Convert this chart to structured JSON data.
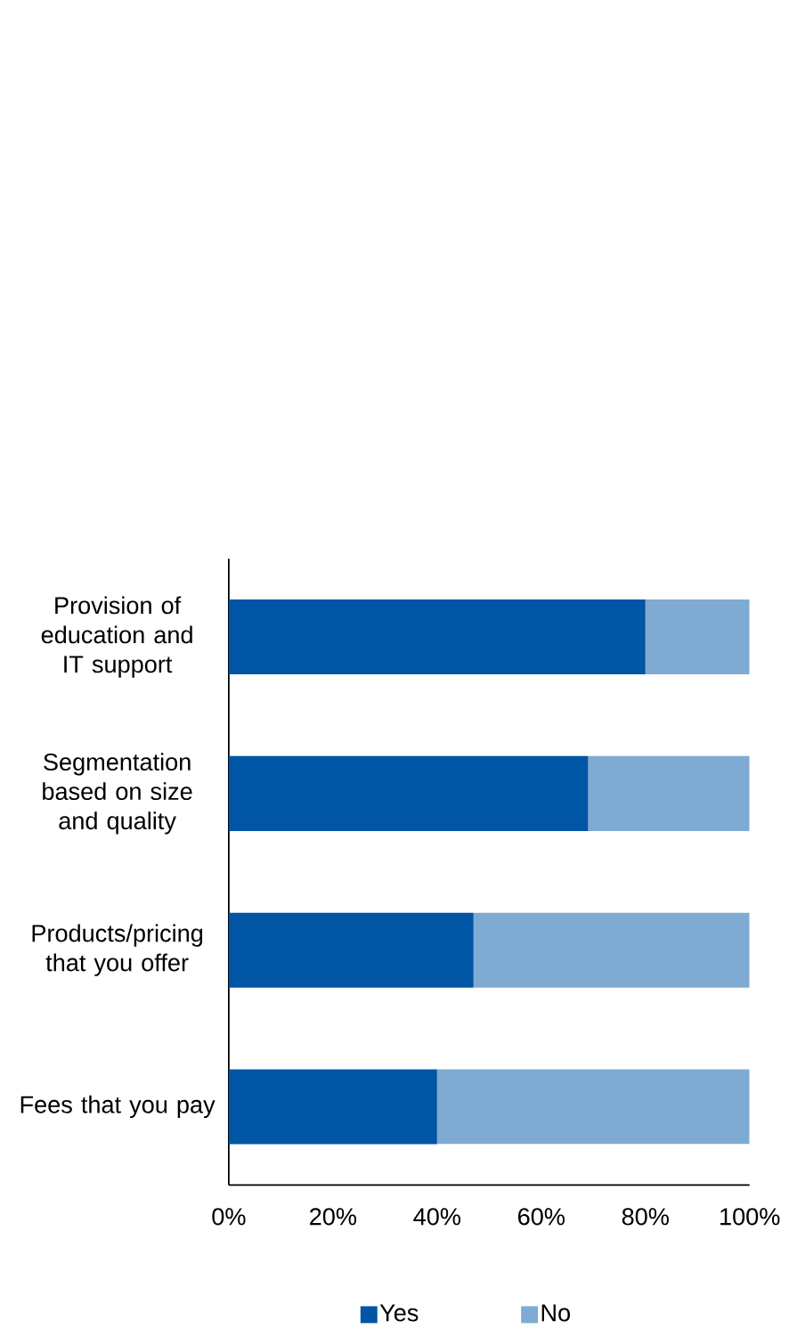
{
  "chart_data": {
    "type": "bar",
    "orientation": "horizontal",
    "stacked": true,
    "categories": [
      "Provision of education and IT support",
      "Segmentation based on size and quality",
      "Products/pricing that you offer",
      "Fees that you pay"
    ],
    "series": [
      {
        "name": "Yes",
        "color": "#0055a5",
        "values": [
          80,
          69,
          47,
          40
        ]
      },
      {
        "name": "No",
        "color": "#7faad2",
        "values": [
          20,
          31,
          53,
          60
        ]
      }
    ],
    "xlim": [
      0,
      100
    ],
    "xticks": [
      {
        "value": 0,
        "label": "0%"
      },
      {
        "value": 20,
        "label": "20%"
      },
      {
        "value": 40,
        "label": "40%"
      },
      {
        "value": 60,
        "label": "60%"
      },
      {
        "value": 80,
        "label": "80%"
      },
      {
        "value": 100,
        "label": "100%"
      }
    ],
    "grid": false,
    "legend": "bottom"
  }
}
